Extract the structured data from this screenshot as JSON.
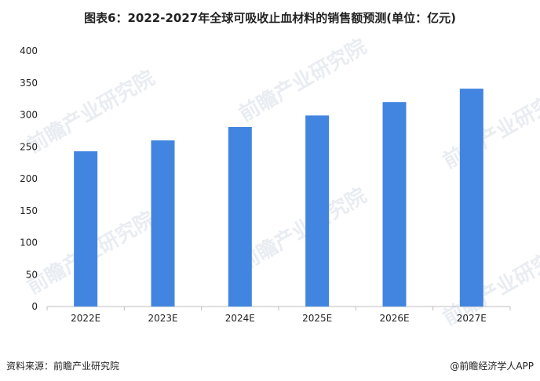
{
  "title": "图表6：2022-2027年全球可吸收止血材料的销售额预测(单位：亿元)",
  "source": "资料来源：前瞻产业研究院",
  "brand": "@前瞻经济学人APP",
  "watermark": "前瞻产业研究院",
  "chart_data": {
    "type": "bar",
    "title": "图表6：2022-2027年全球可吸收止血材料的销售额预测(单位：亿元)",
    "categories": [
      "2022E",
      "2023E",
      "2024E",
      "2025E",
      "2026E",
      "2027E"
    ],
    "values": [
      243,
      260,
      281,
      299,
      320,
      341
    ],
    "ylim": [
      0,
      400
    ],
    "yticks": [
      "0",
      "50",
      "100",
      "150",
      "200",
      "250",
      "300",
      "350",
      "400"
    ],
    "grid": false,
    "bar_color": "#4285e0"
  }
}
